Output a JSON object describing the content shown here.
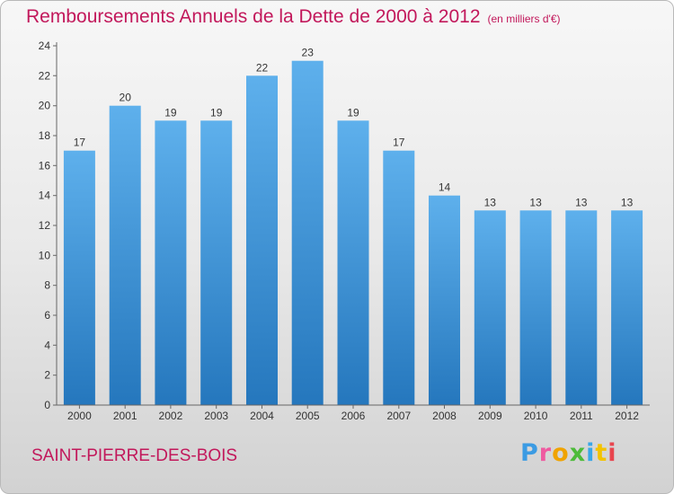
{
  "title": "Remboursements Annuels de la Dette de 2000 à 2012",
  "unit_note": "(en milliers d'€)",
  "city": "SAINT-PIERRE-DES-BOIS",
  "logo": {
    "p": "P",
    "r": "r",
    "o": "o",
    "x": "x",
    "i1": "i",
    "t": "t",
    "i2": "i"
  },
  "colors": {
    "title": "#c2185b",
    "bar_top": "#5eb0ec",
    "bar_bottom": "#2577bd"
  },
  "chart_data": {
    "type": "bar",
    "categories": [
      "2000",
      "2001",
      "2002",
      "2003",
      "2004",
      "2005",
      "2006",
      "2007",
      "2008",
      "2009",
      "2010",
      "2011",
      "2012"
    ],
    "values": [
      17,
      20,
      19,
      19,
      22,
      23,
      19,
      17,
      14,
      13,
      13,
      13,
      13
    ],
    "ylim": [
      0,
      24
    ],
    "yticks": [
      0,
      2,
      4,
      6,
      8,
      10,
      12,
      14,
      16,
      18,
      20,
      22,
      24
    ],
    "grid": false,
    "data_labels": true
  }
}
